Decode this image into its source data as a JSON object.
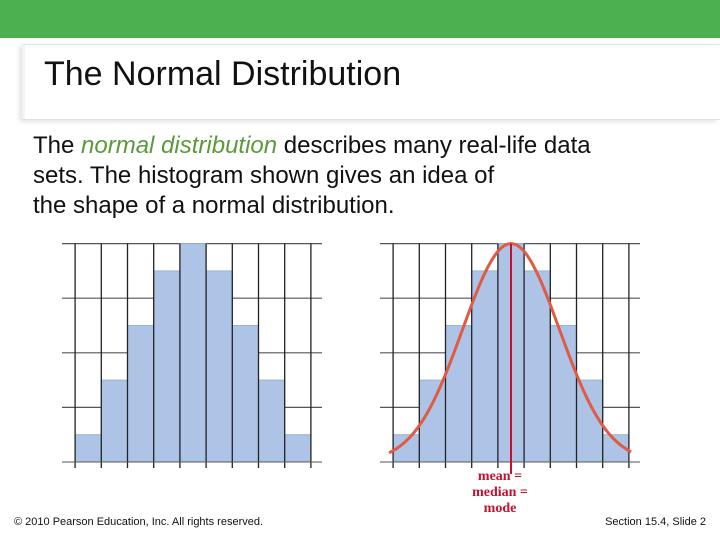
{
  "slide": {
    "title": "The Normal Distribution",
    "body": {
      "prefix": "The ",
      "term": "normal distribution",
      "line1_rest": " describes many real-life data",
      "line2": "sets. The histogram shown gives an idea of",
      "line3": "the shape of a normal distribution."
    },
    "annotation": [
      "mean =",
      "median =",
      "mode"
    ],
    "footer_left": "© 2010 Pearson Education, Inc.  All rights reserved.",
    "footer_right": "Section 15.4, Slide 2"
  },
  "colors": {
    "top_bar": "#4caf50",
    "bar_fill": "#aec4e6",
    "bar_stroke": "#9ab3d8",
    "curve": "#e05a44",
    "annotation": "#c8102e",
    "term": "#5a9a3a"
  },
  "chart_data": [
    {
      "type": "bar",
      "categories": [
        "",
        "",
        "",
        "",
        "",
        "",
        "",
        "",
        ""
      ],
      "values": [
        1,
        3,
        5,
        7,
        8,
        7,
        5,
        3,
        1
      ],
      "ylim": [
        0,
        8.5
      ],
      "grid": true,
      "curve": false
    },
    {
      "type": "bar",
      "categories": [
        "",
        "",
        "",
        "",
        "",
        "",
        "",
        "",
        ""
      ],
      "values": [
        1,
        3,
        5,
        7,
        8,
        7,
        5,
        3,
        1
      ],
      "ylim": [
        0,
        8.5
      ],
      "grid": true,
      "curve": true,
      "mean_line": true
    }
  ]
}
